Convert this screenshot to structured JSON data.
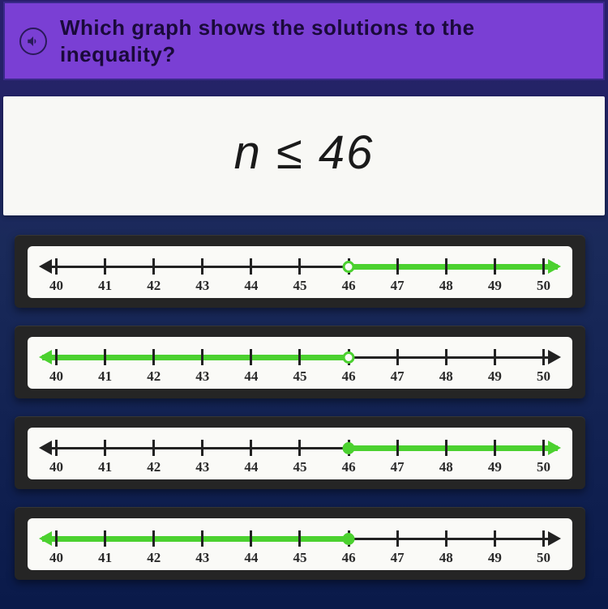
{
  "question": {
    "text": "Which graph shows the solutions to the inequality?"
  },
  "inequality": {
    "expression": "n ≤ 46"
  },
  "numberline": {
    "ticks": [
      40,
      41,
      42,
      43,
      44,
      45,
      46,
      47,
      48,
      49,
      50
    ],
    "min": 40,
    "max": 50,
    "point_value": 46,
    "point_percent": 60,
    "colors": {
      "axis": "#222222",
      "highlight": "#4bd12f",
      "background": "#fafaf7"
    }
  },
  "options": [
    {
      "id": "A",
      "point_style": "open",
      "direction": "right",
      "left_arrow_green": false,
      "right_arrow_green": true
    },
    {
      "id": "B",
      "point_style": "open",
      "direction": "left",
      "left_arrow_green": true,
      "right_arrow_green": false
    },
    {
      "id": "C",
      "point_style": "closed",
      "direction": "right",
      "left_arrow_green": false,
      "right_arrow_green": true
    },
    {
      "id": "D",
      "point_style": "closed",
      "direction": "left",
      "left_arrow_green": true,
      "right_arrow_green": false
    }
  ]
}
